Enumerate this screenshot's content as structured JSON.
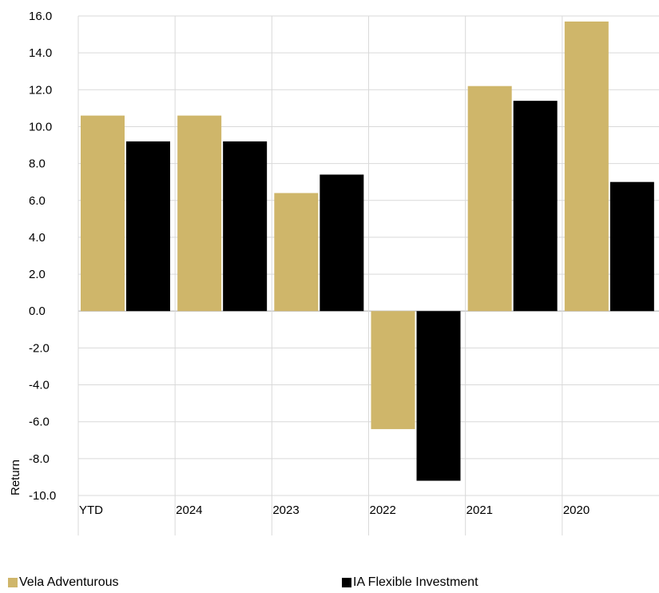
{
  "chart_data": {
    "type": "bar",
    "categories": [
      "YTD",
      "2024",
      "2023",
      "2022",
      "2021",
      "2020"
    ],
    "series": [
      {
        "name": "Vela Adventurous",
        "color": "#cfb66a",
        "values": [
          10.6,
          10.6,
          6.4,
          -6.4,
          12.2,
          15.7
        ]
      },
      {
        "name": "IA Flexible Investment",
        "color": "#000000",
        "values": [
          9.2,
          9.2,
          7.4,
          -9.2,
          11.4,
          7.0
        ]
      }
    ],
    "ylabel": "Return",
    "xlabel": "",
    "ylim": [
      -10.0,
      16.0
    ],
    "yticks": [
      "16.0",
      "14.0",
      "12.0",
      "10.0",
      "8.0",
      "6.0",
      "4.0",
      "2.0",
      "0.0",
      "-2.0",
      "-4.0",
      "-6.0",
      "-8.0",
      "-10.0"
    ],
    "grid": true,
    "legend_position": "bottom"
  },
  "colors": {
    "grid": "#d9d9d9",
    "zero_line": "#c8c8c8"
  }
}
